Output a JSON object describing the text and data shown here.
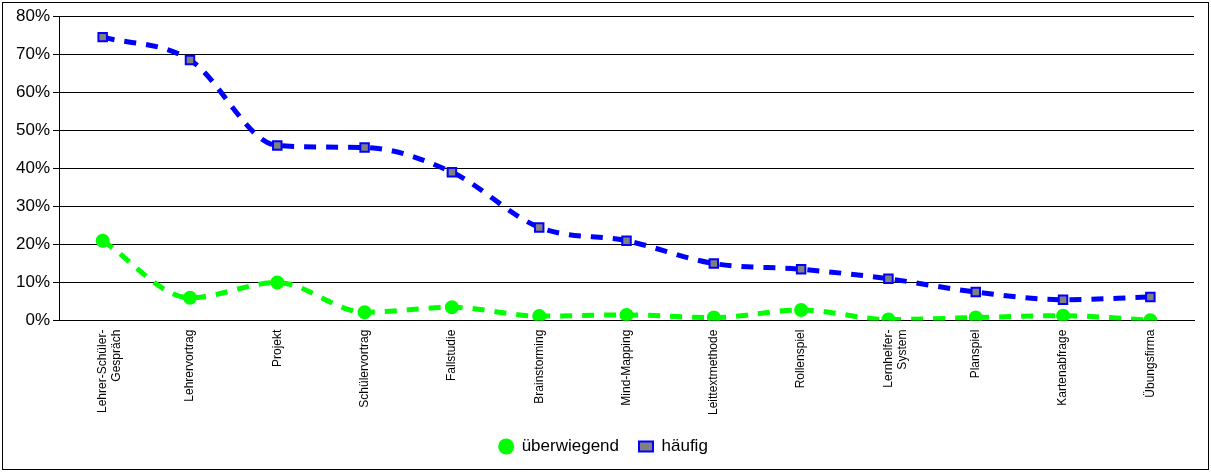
{
  "chart_data": {
    "type": "line",
    "categories": [
      "Lehrer-Schüler-\nGespräch",
      "Lehrervortrag",
      "Projekt",
      "Schülervortrag",
      "Fallstudie",
      "Brainstorming",
      "Mind-Mapping",
      "Leittextmethode",
      "Rollenspiel",
      "Lernhelfer-\nSystem",
      "Planspiel",
      "Kartenabfrage",
      "Übungsfirma"
    ],
    "series": [
      {
        "name": "überwiegend",
        "color": "#00ff00",
        "marker": "circle",
        "line_style": "dashed",
        "values": [
          21,
          6,
          10,
          2.2,
          3.5,
          1.2,
          1.5,
          0.8,
          2.8,
          0.3,
          0.8,
          1.3,
          0.1
        ]
      },
      {
        "name": "häufig",
        "color": "#0000ff",
        "marker": "square",
        "line_style": "dashed",
        "values": [
          74.5,
          68.5,
          46,
          45.5,
          39,
          24.5,
          21,
          15,
          13.5,
          11,
          7.5,
          5.5,
          6.2
        ]
      }
    ],
    "ylim": [
      0,
      80
    ],
    "yticks": [
      {
        "value": 0,
        "label": "0%"
      },
      {
        "value": 10,
        "label": "10%"
      },
      {
        "value": 20,
        "label": "20%"
      },
      {
        "value": 30,
        "label": "30%"
      },
      {
        "value": 40,
        "label": "40%"
      },
      {
        "value": 50,
        "label": "50%"
      },
      {
        "value": 60,
        "label": "60%"
      },
      {
        "value": 70,
        "label": "70%"
      },
      {
        "value": 80,
        "label": "80%"
      }
    ],
    "grid": "y",
    "legend": "bottom"
  }
}
